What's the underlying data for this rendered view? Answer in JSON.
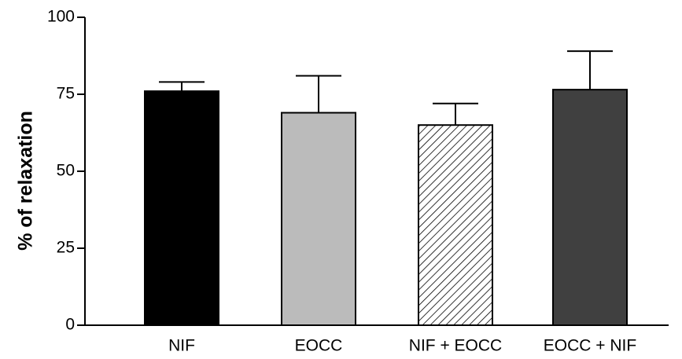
{
  "chart_data": {
    "type": "bar",
    "title": "",
    "xlabel": "",
    "ylabel": "% of relaxation",
    "ylim": [
      0,
      100
    ],
    "yticks": [
      0,
      25,
      50,
      75,
      100
    ],
    "grid": false,
    "legend": "none",
    "categories": [
      "NIF",
      "EOCC",
      "NIF + EOCC",
      "EOCC + NIF"
    ],
    "values": [
      76,
      69,
      65,
      76.5
    ],
    "errors": [
      3,
      12,
      7,
      12.5
    ],
    "fills": [
      "#000000",
      "#bbbbbb",
      "hatch",
      "#404040"
    ]
  }
}
